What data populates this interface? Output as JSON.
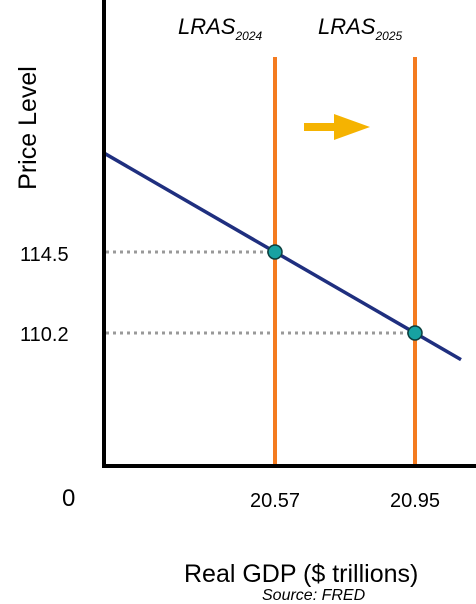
{
  "chart_data": {
    "type": "line",
    "title": "",
    "xlabel": "Real GDP ($ trillions)",
    "ylabel": "Price Level",
    "source": "Source: FRED",
    "origin_label": "0",
    "x_ticks": [
      "20.57",
      "20.95"
    ],
    "y_ticks": [
      "114.5",
      "110.2"
    ],
    "vertical_lines": [
      {
        "name": "LRAS",
        "subscript": "2024",
        "x": 20.57
      },
      {
        "name": "LRAS",
        "subscript": "2025",
        "x": 20.95
      }
    ],
    "demand_curve": [
      {
        "x": 20.57,
        "y": 114.5
      },
      {
        "x": 20.95,
        "y": 110.2
      }
    ],
    "equilibrium_points": [
      {
        "x": 20.57,
        "y": 114.5
      },
      {
        "x": 20.95,
        "y": 110.2
      }
    ],
    "shift_arrow": "right",
    "grid": false,
    "colors": {
      "lras": "#f47b20",
      "demand_curve": "#1f2f7f",
      "points": "#17a2a2",
      "arrow": "#f5b301",
      "guides": "#999999",
      "axes": "#000000"
    }
  }
}
